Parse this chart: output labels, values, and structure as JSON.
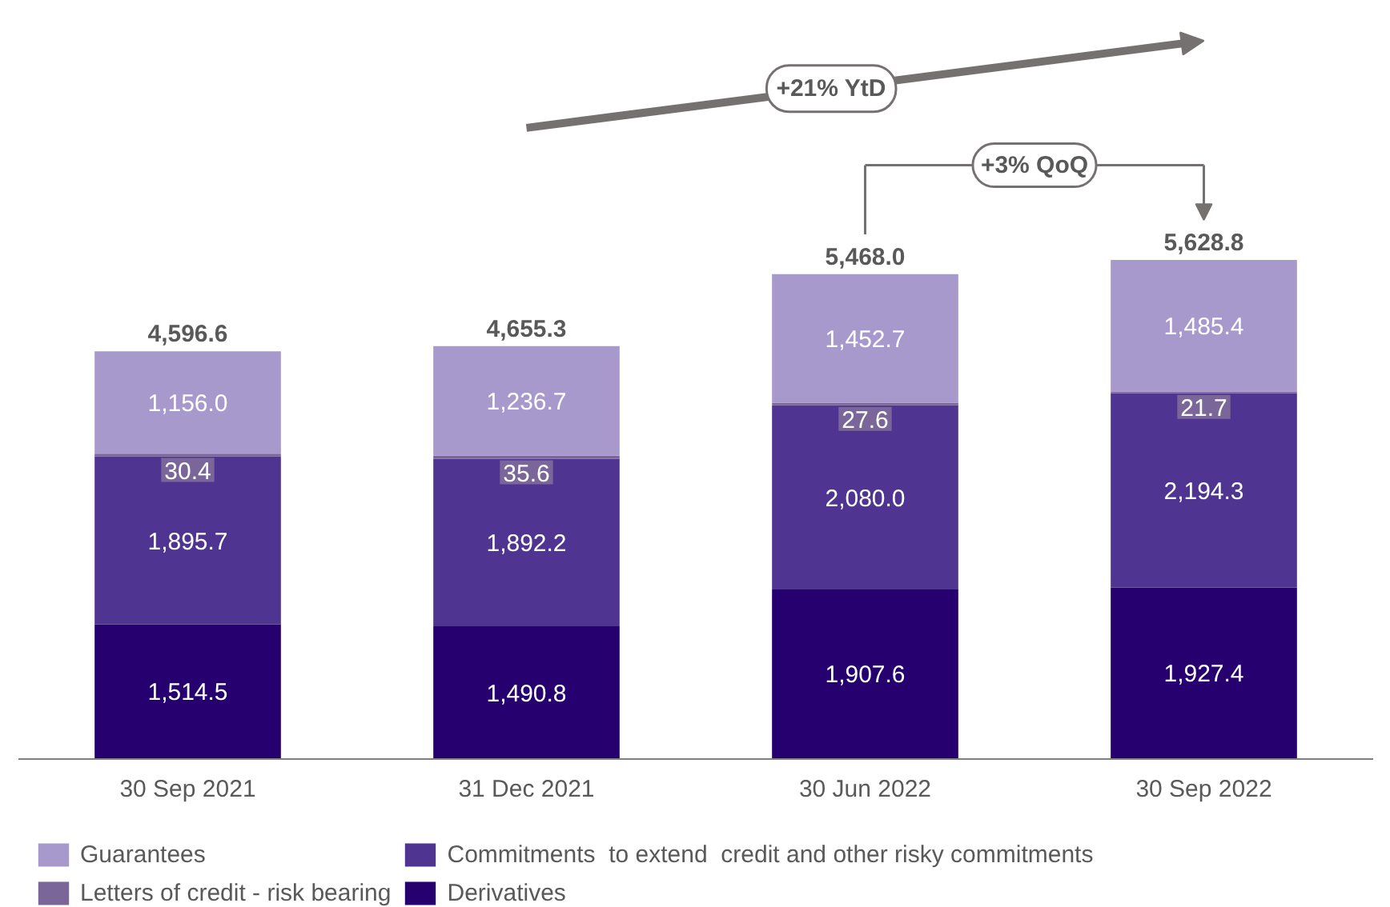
{
  "chart_data": {
    "type": "bar",
    "stacked": true,
    "categories": [
      "30 Sep 2021",
      "31 Dec 2021",
      "30 Jun 2022",
      "30 Sep 2022"
    ],
    "series": [
      {
        "name": "Derivatives",
        "color": "#25006e",
        "values": [
          1514.5,
          1490.8,
          1907.6,
          1927.4
        ],
        "value_labels": [
          "1,514.5",
          "1,490.8",
          "1,907.6",
          "1,927.4"
        ]
      },
      {
        "name": "Commitments  to extend  credit and other risky commitments",
        "color": "#4f3591",
        "values": [
          1895.7,
          1892.2,
          2080.0,
          2194.3
        ],
        "value_labels": [
          "1,895.7",
          "1,892.2",
          "2,080.0",
          "2,194.3"
        ]
      },
      {
        "name": "Letters of credit - risk bearing",
        "color": "#7a6699",
        "values": [
          30.4,
          35.6,
          27.6,
          21.7
        ],
        "value_labels": [
          "30.4",
          "35.6",
          "27.6",
          "21.7"
        ]
      },
      {
        "name": "Guarantees",
        "color": "#a899cc",
        "values": [
          1156.0,
          1236.7,
          1452.7,
          1485.4
        ],
        "value_labels": [
          "1,156.0",
          "1,236.7",
          "1,452.7",
          "1,485.4"
        ]
      }
    ],
    "totals": [
      "4,596.6",
      "4,655.3",
      "5,468.0",
      "5,628.8"
    ],
    "annotations": [
      "+21% YtD",
      "+3% QoQ"
    ],
    "legend": "bottom",
    "grid": false
  }
}
